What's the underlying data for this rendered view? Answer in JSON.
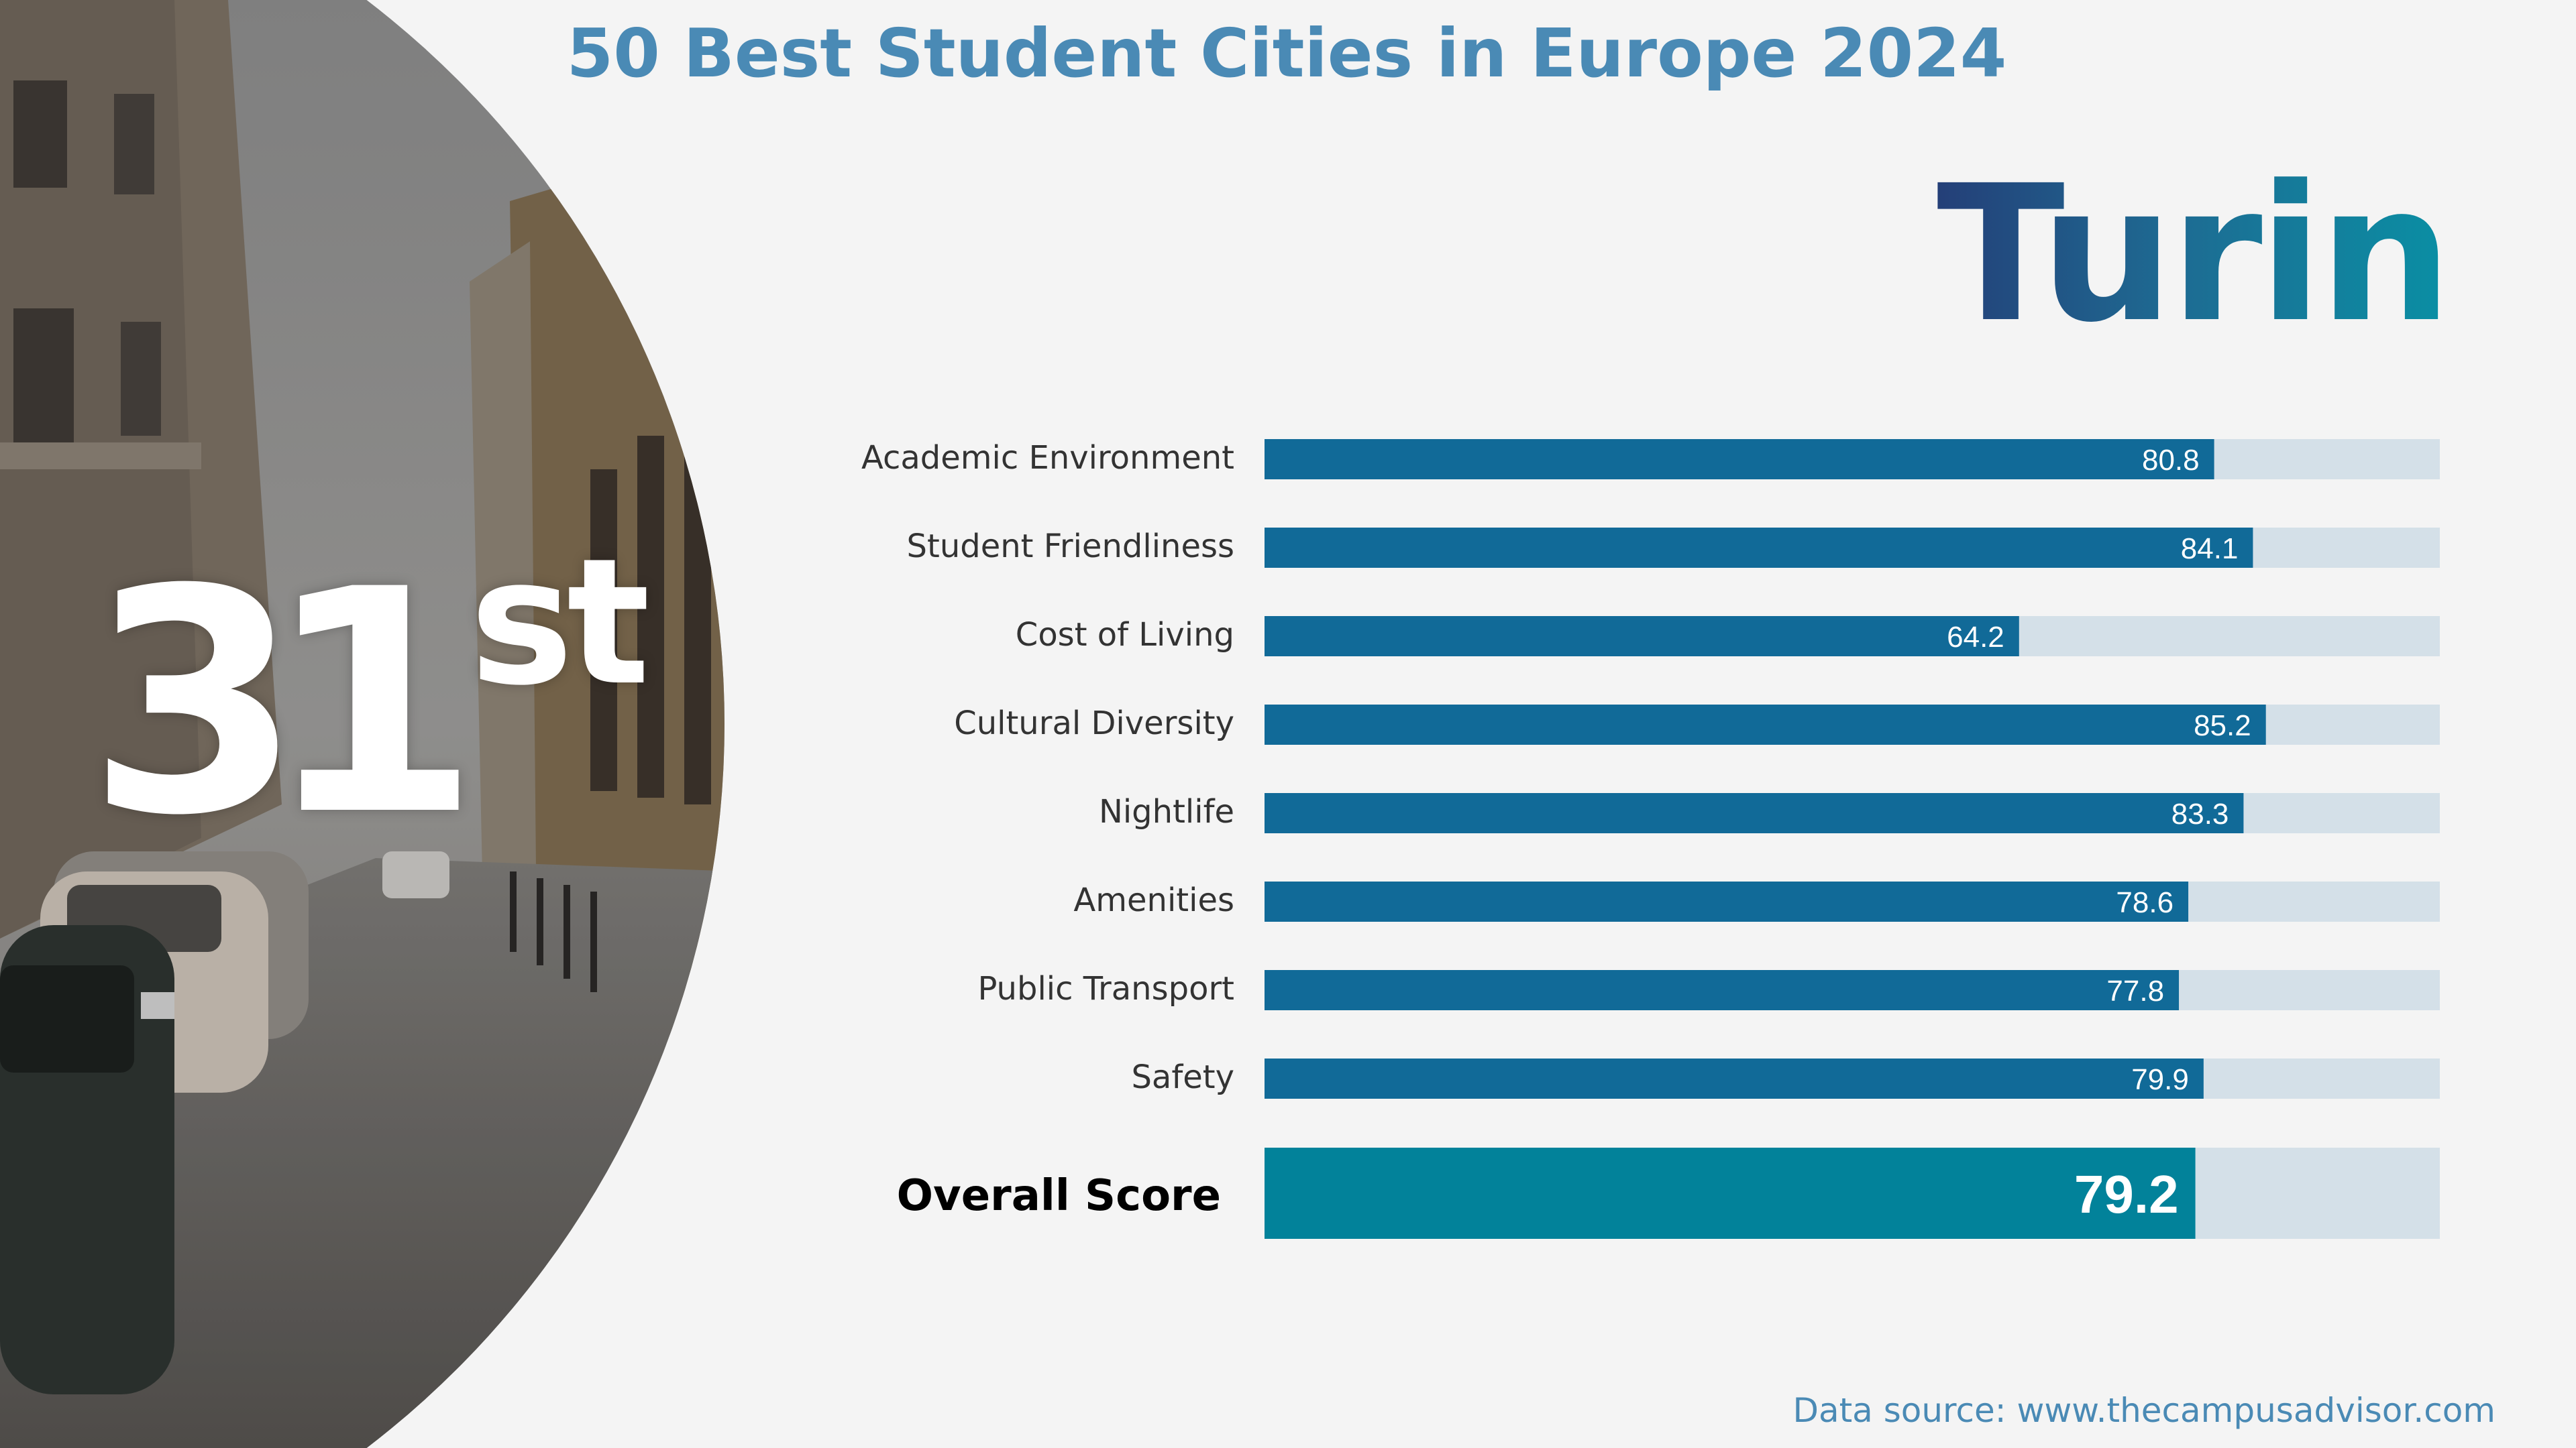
{
  "title": "50 Best Student Cities in Europe 2024",
  "rank": {
    "number": "31",
    "suffix": "st"
  },
  "city": "Turin",
  "source": "Data source: www.thecampusadvisor.com",
  "colors": {
    "bar": "#116a98",
    "overall_bar": "#02829a",
    "track": "#d4e0e8",
    "title": "#4a8ab5"
  },
  "chart_data": {
    "type": "bar",
    "orientation": "horizontal",
    "categories": [
      "Academic Environment",
      "Student Friendliness",
      "Cost of Living",
      "Cultural Diversity",
      "Nightlife",
      "Amenities",
      "Public Transport",
      "Safety"
    ],
    "values": [
      80.8,
      84.1,
      64.2,
      85.2,
      83.3,
      78.6,
      77.8,
      79.9
    ],
    "overall": {
      "label": "Overall Score",
      "value": 79.2
    },
    "xlim": [
      0,
      100
    ],
    "grid": false
  }
}
